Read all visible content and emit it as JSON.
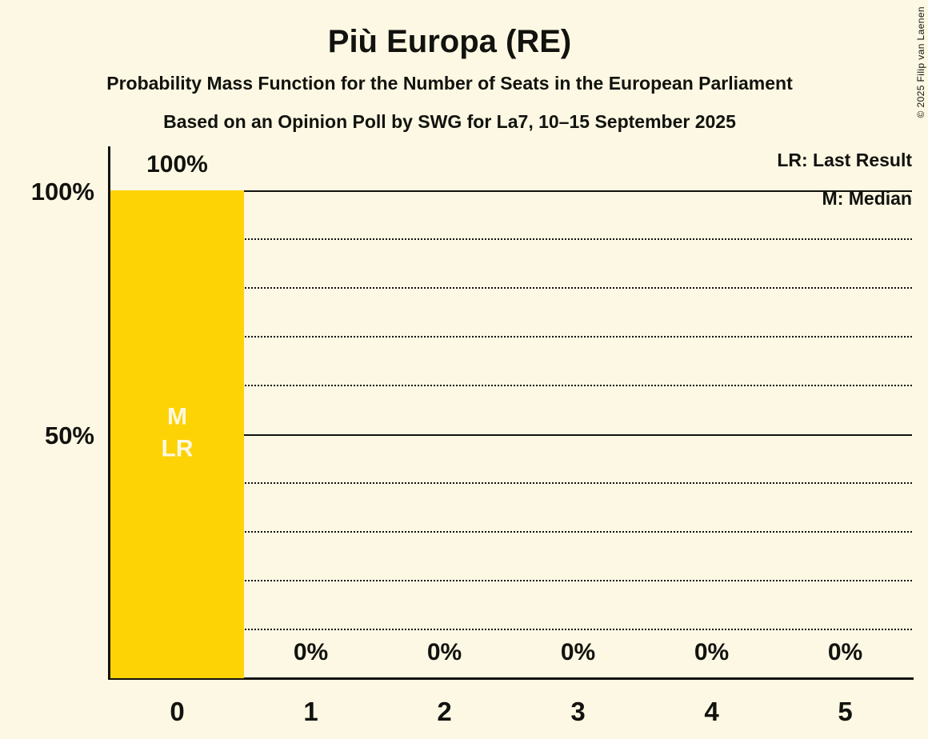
{
  "page": {
    "copyright": "© 2025 Filip van Laenen"
  },
  "colors": {
    "background": "#FCF8E3",
    "bar": "#FDD306",
    "text": "#12120E",
    "bar_annotation": "#FCF8E3",
    "gridline": "#12120E"
  },
  "chart_data": {
    "type": "bar",
    "title": "Più Europa (RE)",
    "subtitle1": "Probability Mass Function for the Number of Seats in the European Parliament",
    "subtitle2": "Based on an Opinion Poll by SWG for La7, 10–15 September 2025",
    "categories": [
      "0",
      "1",
      "2",
      "3",
      "4",
      "5"
    ],
    "values": [
      100,
      0,
      0,
      0,
      0,
      0
    ],
    "value_labels": [
      "100%",
      "0%",
      "0%",
      "0%",
      "0%",
      "0%"
    ],
    "ylim": [
      0,
      100
    ],
    "yticks": [
      {
        "value": 100,
        "label": "100%"
      },
      {
        "value": 50,
        "label": "50%"
      }
    ],
    "gridlines": {
      "solid_at": [
        100,
        50
      ],
      "dotted_at": [
        90,
        80,
        70,
        60,
        40,
        30,
        20,
        10
      ]
    },
    "legend": {
      "position": "top-right",
      "entries": [
        "LR: Last Result",
        "M: Median"
      ]
    },
    "annotations": [
      {
        "category": "0",
        "lines": [
          "M",
          "LR"
        ],
        "meaning": [
          "Median",
          "Last Result"
        ]
      }
    ]
  }
}
